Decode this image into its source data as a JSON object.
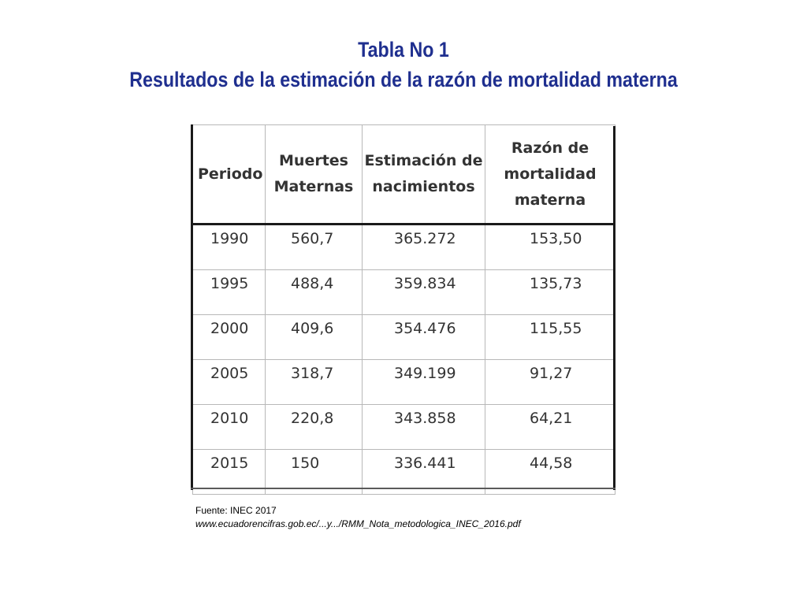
{
  "title": {
    "line1": "Tabla No 1",
    "line2": "Resultados de la estimación de la razón de mortalidad materna"
  },
  "colors": {
    "title": "#1f2f8f",
    "table_text": "#333333",
    "border": "#1a1a1a"
  },
  "table": {
    "headers": [
      [
        "Periodo"
      ],
      [
        "Muertes",
        "Maternas"
      ],
      [
        "Estimación de",
        "nacimientos"
      ],
      [
        "Razón de",
        "mortalidad",
        "materna"
      ]
    ],
    "rows": [
      [
        "1990",
        "560,7",
        "365.272",
        "153,50"
      ],
      [
        "1995",
        "488,4",
        "359.834",
        "135,73"
      ],
      [
        "2000",
        "409,6",
        "354.476",
        "115,55"
      ],
      [
        "2005",
        "318,7",
        "349.199",
        "91,27"
      ],
      [
        "2010",
        "220,8",
        "343.858",
        "64,21"
      ],
      [
        "2015",
        "150",
        "336.441",
        "44,58"
      ]
    ]
  },
  "source": {
    "label": "Fuente: INEC 2017",
    "url": "www.ecuadorencifras.gob.ec/...y.../RMM_Nota_metodologica_INEC_2016.pdf"
  }
}
